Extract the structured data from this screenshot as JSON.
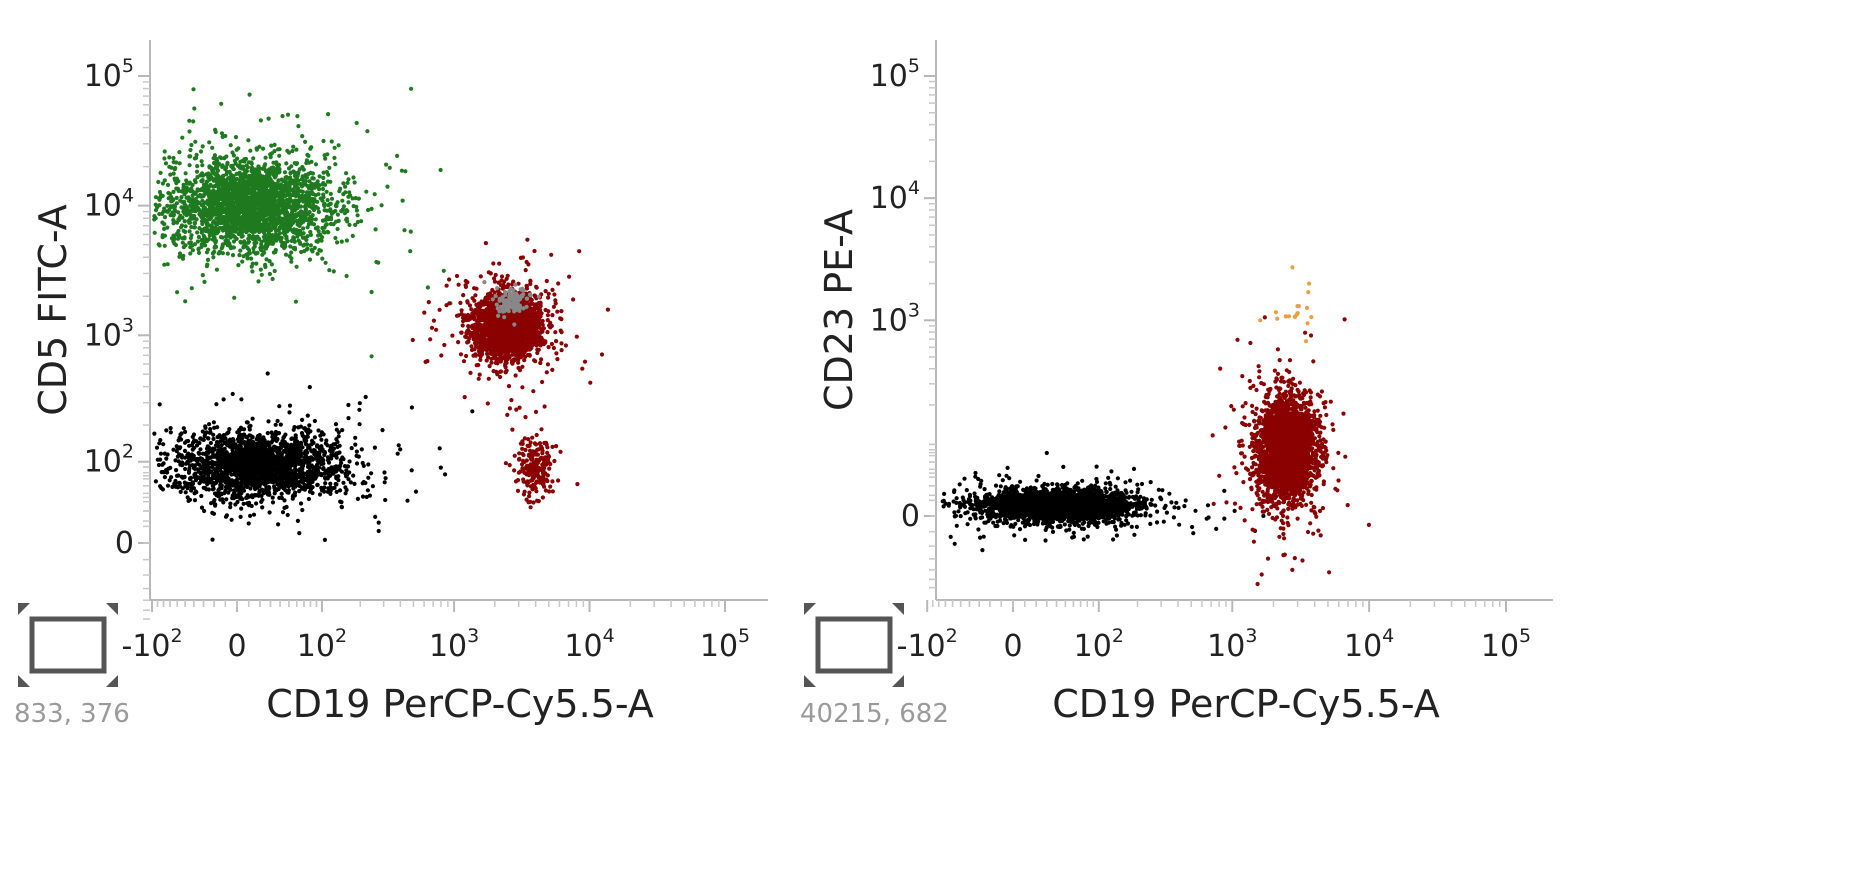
{
  "chart_data": [
    {
      "type": "scatter",
      "title": "",
      "xlabel": "CD19 PerCP-Cy5.5-A",
      "ylabel": "CD5 FITC-A",
      "x_scale": "biexponential",
      "y_scale": "biexponential",
      "x_ticks": [
        {
          "value": -100,
          "base": "-10",
          "exp": "2"
        },
        {
          "value": 0,
          "base": "0",
          "exp": ""
        },
        {
          "value": 100,
          "base": "10",
          "exp": "2"
        },
        {
          "value": 1000,
          "base": "10",
          "exp": "3"
        },
        {
          "value": 10000,
          "base": "10",
          "exp": "4"
        },
        {
          "value": 100000,
          "base": "10",
          "exp": "5"
        }
      ],
      "y_ticks": [
        {
          "value": 0,
          "base": "0",
          "exp": ""
        },
        {
          "value": 100,
          "base": "10",
          "exp": "2"
        },
        {
          "value": 1000,
          "base": "10",
          "exp": "3"
        },
        {
          "value": 10000,
          "base": "10",
          "exp": "4"
        },
        {
          "value": 100000,
          "base": "10",
          "exp": "5"
        }
      ],
      "series": [
        {
          "name": "",
          "color": "#1f7a1f",
          "clusters": [
            {
              "cx": 10,
              "cy": 10000,
              "sx_dec": 0.55,
              "sy_dec": 0.32,
              "n": 2600,
              "spread": "broad"
            }
          ]
        },
        {
          "name": "",
          "color": "#000000",
          "clusters": [
            {
              "cx": 20,
              "cy": 95,
              "sx_dec": 0.55,
              "sy_dec": 0.22,
              "n": 2200,
              "spread": "broad"
            }
          ]
        },
        {
          "name": "",
          "color": "#8b0000",
          "clusters": [
            {
              "cx": 2500,
              "cy": 1200,
              "sx_dec": 0.22,
              "sy_dec": 0.22,
              "n": 2400,
              "spread": "medium"
            },
            {
              "cx": 4000,
              "cy": 90,
              "sx_dec": 0.12,
              "sy_dec": 0.2,
              "n": 220,
              "spread": "sparse"
            }
          ]
        },
        {
          "name": "",
          "color": "#888888",
          "clusters": [
            {
              "cx": 2700,
              "cy": 1800,
              "sx_dec": 0.1,
              "sy_dec": 0.1,
              "n": 120,
              "spread": "tight"
            }
          ]
        }
      ],
      "coordinate_readout": "833, 376"
    },
    {
      "type": "scatter",
      "title": "",
      "xlabel": "CD19 PerCP-Cy5.5-A",
      "ylabel": "CD23 PE-A",
      "x_scale": "biexponential",
      "y_scale": "biexponential",
      "x_ticks": [
        {
          "value": -100,
          "base": "-10",
          "exp": "2"
        },
        {
          "value": 0,
          "base": "0",
          "exp": ""
        },
        {
          "value": 100,
          "base": "10",
          "exp": "2"
        },
        {
          "value": 1000,
          "base": "10",
          "exp": "3"
        },
        {
          "value": 10000,
          "base": "10",
          "exp": "4"
        },
        {
          "value": 100000,
          "base": "10",
          "exp": "5"
        }
      ],
      "y_ticks": [
        {
          "value": 0,
          "base": "0",
          "exp": ""
        },
        {
          "value": 1000,
          "base": "10",
          "exp": "3"
        },
        {
          "value": 10000,
          "base": "10",
          "exp": "4"
        },
        {
          "value": 100000,
          "base": "10",
          "exp": "5"
        }
      ],
      "series": [
        {
          "name": "",
          "color": "#000000",
          "clusters": [
            {
              "cx": 40,
              "cy": 10,
              "sx_dec": 0.5,
              "sy_dec": 0.12,
              "n": 2600,
              "spread": "wide"
            }
          ]
        },
        {
          "name": "",
          "color": "#8b0000",
          "clusters": [
            {
              "cx": 2500,
              "cy": 80,
              "sx_dec": 0.18,
              "sy_dec": 0.35,
              "n": 3200,
              "spread": "tall"
            }
          ]
        },
        {
          "name": "",
          "color": "#e8a040",
          "clusters": [
            {
              "cx": 2800,
              "cy": 1100,
              "sx_dec": 0.15,
              "sy_dec": 0.25,
              "n": 18,
              "spread": "sparse"
            }
          ]
        }
      ],
      "coordinate_readout": "40215, 682"
    }
  ]
}
